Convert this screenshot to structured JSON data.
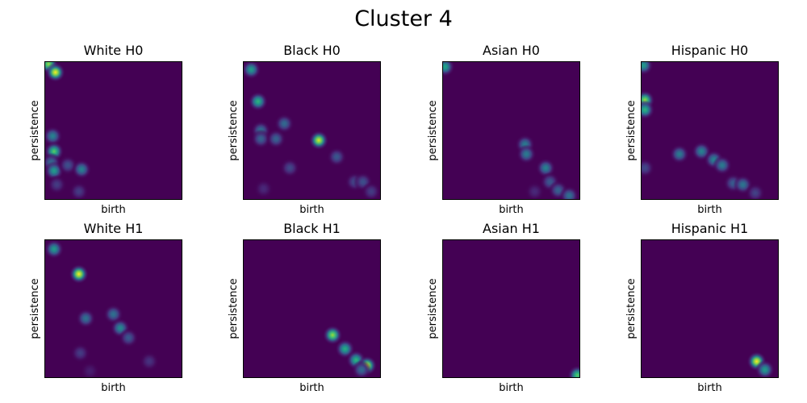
{
  "figure": {
    "title": "Cluster 4"
  },
  "chart_data": [
    {
      "type": "heatmap",
      "title": "White H0",
      "xlabel": "birth",
      "ylabel": "persistence",
      "colormap": "viridis",
      "background": "#440154",
      "blobs": [
        {
          "x": 0.03,
          "y": 0.98,
          "i": 0.85
        },
        {
          "x": 0.08,
          "y": 0.92,
          "i": 1.0
        },
        {
          "x": 0.06,
          "y": 0.46,
          "i": 0.45
        },
        {
          "x": 0.07,
          "y": 0.35,
          "i": 0.75
        },
        {
          "x": 0.05,
          "y": 0.27,
          "i": 0.35
        },
        {
          "x": 0.07,
          "y": 0.21,
          "i": 0.55
        },
        {
          "x": 0.17,
          "y": 0.25,
          "i": 0.25
        },
        {
          "x": 0.27,
          "y": 0.22,
          "i": 0.45
        },
        {
          "x": 0.09,
          "y": 0.11,
          "i": 0.18
        },
        {
          "x": 0.25,
          "y": 0.06,
          "i": 0.18
        }
      ]
    },
    {
      "type": "heatmap",
      "title": "Black H0",
      "xlabel": "birth",
      "ylabel": "persistence",
      "colormap": "viridis",
      "background": "#440154",
      "blobs": [
        {
          "x": 0.06,
          "y": 0.94,
          "i": 0.55
        },
        {
          "x": 0.11,
          "y": 0.71,
          "i": 0.65
        },
        {
          "x": 0.13,
          "y": 0.5,
          "i": 0.38
        },
        {
          "x": 0.13,
          "y": 0.44,
          "i": 0.32
        },
        {
          "x": 0.24,
          "y": 0.44,
          "i": 0.32
        },
        {
          "x": 0.3,
          "y": 0.55,
          "i": 0.35
        },
        {
          "x": 0.55,
          "y": 0.43,
          "i": 0.95
        },
        {
          "x": 0.68,
          "y": 0.31,
          "i": 0.28
        },
        {
          "x": 0.34,
          "y": 0.23,
          "i": 0.22
        },
        {
          "x": 0.15,
          "y": 0.08,
          "i": 0.12
        },
        {
          "x": 0.81,
          "y": 0.13,
          "i": 0.22
        },
        {
          "x": 0.87,
          "y": 0.13,
          "i": 0.25
        },
        {
          "x": 0.93,
          "y": 0.06,
          "i": 0.18
        }
      ]
    },
    {
      "type": "heatmap",
      "title": "Asian H0",
      "xlabel": "birth",
      "ylabel": "persistence",
      "colormap": "viridis",
      "background": "#440154",
      "blobs": [
        {
          "x": 0.02,
          "y": 0.96,
          "i": 0.6
        },
        {
          "x": 0.6,
          "y": 0.4,
          "i": 0.42
        },
        {
          "x": 0.61,
          "y": 0.33,
          "i": 0.42
        },
        {
          "x": 0.75,
          "y": 0.23,
          "i": 0.45
        },
        {
          "x": 0.78,
          "y": 0.13,
          "i": 0.28
        },
        {
          "x": 0.84,
          "y": 0.07,
          "i": 0.32
        },
        {
          "x": 0.92,
          "y": 0.03,
          "i": 0.38
        },
        {
          "x": 0.67,
          "y": 0.06,
          "i": 0.12
        }
      ]
    },
    {
      "type": "heatmap",
      "title": "Hispanic H0",
      "xlabel": "birth",
      "ylabel": "persistence",
      "colormap": "viridis",
      "background": "#440154",
      "blobs": [
        {
          "x": 0.02,
          "y": 0.97,
          "i": 0.55
        },
        {
          "x": 0.03,
          "y": 0.72,
          "i": 0.85
        },
        {
          "x": 0.03,
          "y": 0.65,
          "i": 0.65
        },
        {
          "x": 0.03,
          "y": 0.23,
          "i": 0.22
        },
        {
          "x": 0.28,
          "y": 0.33,
          "i": 0.42
        },
        {
          "x": 0.44,
          "y": 0.35,
          "i": 0.45
        },
        {
          "x": 0.53,
          "y": 0.29,
          "i": 0.45
        },
        {
          "x": 0.59,
          "y": 0.25,
          "i": 0.42
        },
        {
          "x": 0.67,
          "y": 0.12,
          "i": 0.3
        },
        {
          "x": 0.74,
          "y": 0.11,
          "i": 0.4
        },
        {
          "x": 0.83,
          "y": 0.05,
          "i": 0.2
        }
      ]
    },
    {
      "type": "heatmap",
      "title": "White H1",
      "xlabel": "birth",
      "ylabel": "persistence",
      "colormap": "viridis",
      "background": "#440154",
      "blobs": [
        {
          "x": 0.07,
          "y": 0.93,
          "i": 0.55
        },
        {
          "x": 0.25,
          "y": 0.75,
          "i": 1.0
        },
        {
          "x": 0.3,
          "y": 0.43,
          "i": 0.38
        },
        {
          "x": 0.5,
          "y": 0.46,
          "i": 0.38
        },
        {
          "x": 0.55,
          "y": 0.36,
          "i": 0.48
        },
        {
          "x": 0.61,
          "y": 0.29,
          "i": 0.28
        },
        {
          "x": 0.26,
          "y": 0.18,
          "i": 0.18
        },
        {
          "x": 0.76,
          "y": 0.12,
          "i": 0.15
        },
        {
          "x": 0.33,
          "y": 0.05,
          "i": 0.08
        }
      ]
    },
    {
      "type": "heatmap",
      "title": "Black H1",
      "xlabel": "birth",
      "ylabel": "persistence",
      "colormap": "viridis",
      "background": "#440154",
      "blobs": [
        {
          "x": 0.65,
          "y": 0.31,
          "i": 0.85
        },
        {
          "x": 0.74,
          "y": 0.21,
          "i": 0.62
        },
        {
          "x": 0.82,
          "y": 0.13,
          "i": 0.65
        },
        {
          "x": 0.9,
          "y": 0.09,
          "i": 0.95
        },
        {
          "x": 0.86,
          "y": 0.06,
          "i": 0.35
        }
      ]
    },
    {
      "type": "heatmap",
      "title": "Asian H1",
      "xlabel": "birth",
      "ylabel": "persistence",
      "colormap": "viridis",
      "background": "#440154",
      "blobs": [
        {
          "x": 0.98,
          "y": 0.02,
          "i": 0.75
        }
      ]
    },
    {
      "type": "heatmap",
      "title": "Hispanic H1",
      "xlabel": "birth",
      "ylabel": "persistence",
      "colormap": "viridis",
      "background": "#440154",
      "blobs": [
        {
          "x": 0.84,
          "y": 0.12,
          "i": 1.0
        },
        {
          "x": 0.9,
          "y": 0.06,
          "i": 0.55
        }
      ]
    }
  ]
}
